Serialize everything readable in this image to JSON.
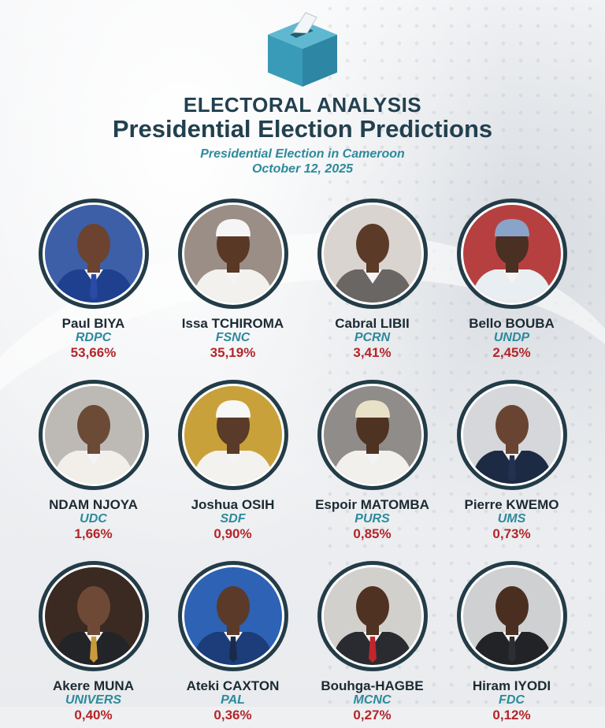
{
  "header": {
    "icon": "ballot-box-icon",
    "title": "ELECTORAL ANALYSIS",
    "subtitle": "Presidential Election Predictions",
    "context_line1": "Presidential Election in Cameroon",
    "context_line2": "October 12, 2025"
  },
  "colors": {
    "heading": "#22404f",
    "party": "#2c8a9c",
    "percent": "#b3262a",
    "ring": "#233c48",
    "ballot_box": "#3a9bb8"
  },
  "candidates": [
    {
      "name": "Paul BIYA",
      "party": "RDPC",
      "percent": "53,66%",
      "value": 53.66,
      "bg": "#3d5fa8",
      "suit": "#1f3f8f",
      "skin": "#6b4330",
      "hat": "",
      "tie": "#2b4aa6"
    },
    {
      "name": "Issa TCHIROMA",
      "party": "FSNC",
      "percent": "35,19%",
      "value": 35.19,
      "bg": "#9a8e86",
      "suit": "#f3f1ee",
      "skin": "#5a3826",
      "hat": "#f5f5f5",
      "tie": ""
    },
    {
      "name": "Cabral LIBII",
      "party": "PCRN",
      "percent": "3,41%",
      "value": 3.41,
      "bg": "#d9d4cf",
      "suit": "#6a6664",
      "skin": "#5b3a28",
      "hat": "",
      "tie": ""
    },
    {
      "name": "Bello BOUBA",
      "party": "UNDP",
      "percent": "2,45%",
      "value": 2.45,
      "bg": "#b64040",
      "suit": "#e8eef2",
      "skin": "#4a3022",
      "hat": "#8aa3c9",
      "tie": ""
    },
    {
      "name": "NDAM NJOYA",
      "party": "UDC",
      "percent": "1,66%",
      "value": 1.66,
      "bg": "#bdbab6",
      "suit": "#f2efea",
      "skin": "#6b4a36",
      "hat": "",
      "tie": ""
    },
    {
      "name": "Joshua OSIH",
      "party": "SDF",
      "percent": "0,90%",
      "value": 0.9,
      "bg": "#c9a13a",
      "suit": "#f4f2ee",
      "skin": "#5a3a28",
      "hat": "#f7f7f7",
      "tie": ""
    },
    {
      "name": "Espoir MATOMBA",
      "party": "PURS",
      "percent": "0,85%",
      "value": 0.85,
      "bg": "#8f8c89",
      "suit": "#f2f0ec",
      "skin": "#4e3222",
      "hat": "#e9e0c8",
      "tie": ""
    },
    {
      "name": "Pierre KWEMO",
      "party": "UMS",
      "percent": "0,73%",
      "value": 0.73,
      "bg": "#d5d7da",
      "suit": "#1d2a44",
      "skin": "#6a4432",
      "hat": "",
      "tie": "#24304e"
    },
    {
      "name": "Akere MUNA",
      "party": "UNIVERS",
      "percent": "0,40%",
      "value": 0.4,
      "bg": "#3a2a22",
      "suit": "#232428",
      "skin": "#6e4a36",
      "hat": "",
      "tie": "#c89a3a"
    },
    {
      "name": "Ateki CAXTON",
      "party": "PAL",
      "percent": "0,36%",
      "value": 0.36,
      "bg": "#2d62b5",
      "suit": "#1c3d7a",
      "skin": "#5b3a29",
      "hat": "",
      "tie": "#1a2a4a"
    },
    {
      "name": "Bouhga-HAGBE",
      "party": "MCNC",
      "percent": "0,27%",
      "value": 0.27,
      "bg": "#d2d0cd",
      "suit": "#2a2b30",
      "skin": "#4f3222",
      "hat": "",
      "tie": "#c0262b"
    },
    {
      "name": "Hiram IYODI",
      "party": "FDC",
      "percent": "0,12%",
      "value": 0.12,
      "bg": "#cfd0d2",
      "suit": "#222326",
      "skin": "#4a2f20",
      "hat": "",
      "tie": "#2d2e33"
    }
  ]
}
